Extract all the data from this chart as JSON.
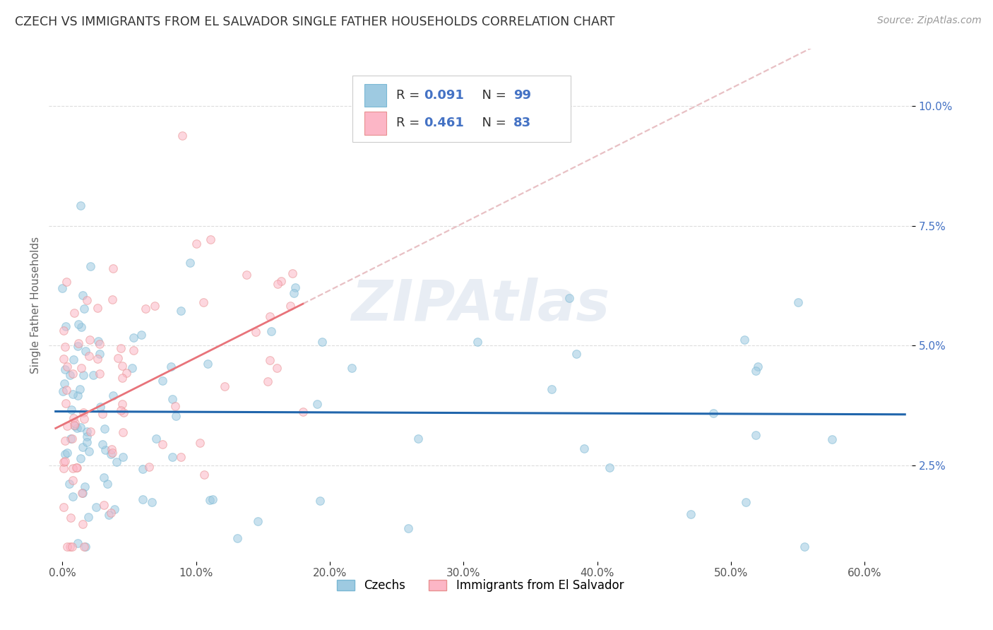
{
  "title": "CZECH VS IMMIGRANTS FROM EL SALVADOR SINGLE FATHER HOUSEHOLDS CORRELATION CHART",
  "source": "Source: ZipAtlas.com",
  "ylabel": "Single Father Households",
  "xlabel_ticks": [
    "0.0%",
    "10.0%",
    "20.0%",
    "30.0%",
    "40.0%",
    "50.0%",
    "60.0%"
  ],
  "xlabel_vals": [
    0.0,
    0.1,
    0.2,
    0.3,
    0.4,
    0.5,
    0.6
  ],
  "ylabel_ticks": [
    "2.5%",
    "5.0%",
    "7.5%",
    "10.0%"
  ],
  "ylabel_vals": [
    0.025,
    0.05,
    0.075,
    0.1
  ],
  "xlim": [
    -0.01,
    0.635
  ],
  "ylim": [
    0.005,
    0.112
  ],
  "R_czech": 0.091,
  "N_czech": 99,
  "R_salvador": 0.461,
  "N_salvador": 83,
  "color_czech": "#9ecae1",
  "color_salvador": "#fcb6c6",
  "trend_czech_color": "#2166ac",
  "trend_salvador_solid_color": "#e8737a",
  "trend_salvador_dashed_color": "#e8c0c4",
  "background_color": "#ffffff",
  "grid_color": "#dddddd",
  "title_color": "#333333",
  "axis_label_color": "#666666",
  "ytick_color": "#4472c4",
  "marker_size": 70,
  "marker_alpha": 0.55,
  "marker_linewidth": 0.8,
  "marker_edgecolor_czech": "#7ab8d4",
  "marker_edgecolor_salvador": "#e89090",
  "watermark_color": "#cdd8e8",
  "watermark_alpha": 0.45
}
